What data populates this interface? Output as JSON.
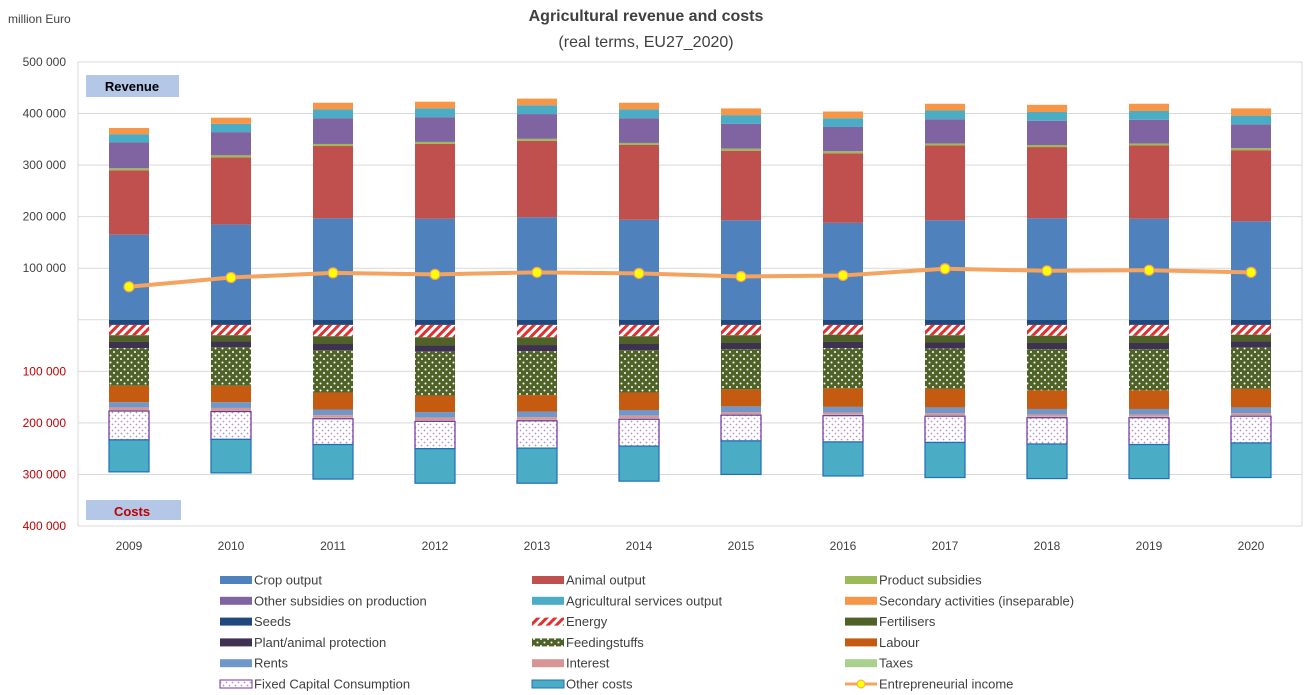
{
  "chart_data": {
    "type": "bar",
    "stacked": true,
    "title": "Agricultural revenue and costs",
    "subtitle": "(real terms, EU27_2020)",
    "unit_label": "million Euro",
    "revenue_label": "Revenue",
    "costs_label": "Costs",
    "categories": [
      "2009",
      "2010",
      "2011",
      "2012",
      "2013",
      "2014",
      "2015",
      "2016",
      "2017",
      "2018",
      "2019",
      "2020"
    ],
    "y_ticks": [
      "500 000",
      "400 000",
      "300 000",
      "200 000",
      "100 000",
      "",
      "100 000",
      "200 000",
      "300 000",
      "400 000"
    ],
    "ylim": [
      -400000,
      500000
    ],
    "grid": true,
    "legend_position": "bottom",
    "colors": {
      "accent_costs_label": "#c00000",
      "label_box": "#b4c7e7",
      "axis_line": "#d9d9d9"
    },
    "revenue_series": [
      {
        "name": "Crop output",
        "color": "#4f81bd",
        "pattern": "solid",
        "values": [
          165000,
          185000,
          197000,
          196000,
          199000,
          194000,
          193000,
          188000,
          193000,
          197000,
          196000,
          191000
        ]
      },
      {
        "name": "Animal output",
        "color": "#c0504d",
        "pattern": "solid",
        "values": [
          125000,
          130000,
          140000,
          145000,
          148000,
          145000,
          135000,
          135000,
          145000,
          138000,
          142000,
          138000
        ]
      },
      {
        "name": "Product subsidies",
        "color": "#9bbb59",
        "pattern": "solid",
        "values": [
          4000,
          4000,
          4000,
          4000,
          4000,
          4000,
          4000,
          4000,
          4000,
          4000,
          4000,
          4000
        ]
      },
      {
        "name": "Other subsidies on production",
        "color": "#8064a2",
        "pattern": "solid",
        "values": [
          50000,
          45000,
          50000,
          48000,
          48000,
          48000,
          48000,
          47000,
          47000,
          47000,
          46000,
          46000
        ]
      },
      {
        "name": "Agricultural services output",
        "color": "#4bacc6",
        "pattern": "solid",
        "values": [
          16000,
          16000,
          17000,
          17000,
          17000,
          17000,
          17000,
          17000,
          17000,
          17000,
          17000,
          17000
        ]
      },
      {
        "name": "Secondary activities (inseparable)",
        "color": "#f79646",
        "pattern": "solid",
        "values": [
          12000,
          12000,
          13000,
          13000,
          13000,
          13000,
          13000,
          13000,
          13000,
          14000,
          14000,
          14000
        ]
      }
    ],
    "cost_series": [
      {
        "name": "Seeds",
        "color": "#1f497d",
        "pattern": "solid",
        "values": [
          10000,
          10000,
          10000,
          10000,
          10000,
          10000,
          10000,
          10000,
          10000,
          10000,
          10000,
          10000
        ]
      },
      {
        "name": "Energy",
        "color": "#e03030",
        "pattern": "diag",
        "values": [
          20000,
          20000,
          22000,
          24000,
          24000,
          22000,
          20000,
          19000,
          20000,
          21000,
          21000,
          19000
        ]
      },
      {
        "name": "Fertilisers",
        "color": "#4f6228",
        "pattern": "solid",
        "values": [
          13000,
          12000,
          15000,
          16000,
          15000,
          15000,
          15000,
          14000,
          14000,
          14000,
          14000,
          13000
        ]
      },
      {
        "name": "Plant/animal protection",
        "color": "#3f3151",
        "pattern": "solid",
        "values": [
          12000,
          11000,
          12000,
          12000,
          12000,
          12000,
          12000,
          12000,
          12000,
          12000,
          12000,
          12000
        ]
      },
      {
        "name": "Feedingstuffs",
        "color": "#4f6228",
        "pattern": "dots",
        "values": [
          73000,
          75000,
          82000,
          85000,
          85000,
          82000,
          78000,
          78000,
          78000,
          80000,
          80000,
          80000
        ]
      },
      {
        "name": "Labour",
        "color": "#c55a11",
        "pattern": "solid",
        "values": [
          32000,
          32000,
          33000,
          32000,
          32000,
          34000,
          33000,
          36000,
          36000,
          36000,
          36000,
          36000
        ]
      },
      {
        "name": "Rents",
        "color": "#6f97c9",
        "pattern": "solid",
        "values": [
          10000,
          11000,
          11000,
          11000,
          11000,
          11000,
          11000,
          11000,
          11000,
          11000,
          11000,
          11000
        ]
      },
      {
        "name": "Interest",
        "color": "#d99594",
        "pattern": "solid",
        "values": [
          5000,
          5000,
          5000,
          5000,
          5000,
          5000,
          4000,
          4000,
          4000,
          4000,
          4000,
          4000
        ]
      },
      {
        "name": "Taxes",
        "color": "#a9d18e",
        "pattern": "solid",
        "values": [
          2000,
          2000,
          2000,
          2000,
          2000,
          2000,
          2000,
          2000,
          2000,
          2000,
          2000,
          2000
        ]
      },
      {
        "name": "Fixed Capital Consumption",
        "color": "#7030a0",
        "pattern": "fcc",
        "values": [
          56000,
          54000,
          50000,
          53000,
          53000,
          52000,
          50000,
          51000,
          51000,
          51000,
          52000,
          52000
        ]
      },
      {
        "name": "Other costs",
        "color": "#4bacc6",
        "pattern": "solid",
        "values": [
          62000,
          65000,
          67000,
          67000,
          68000,
          68000,
          65000,
          66000,
          68000,
          67000,
          66000,
          67000
        ]
      }
    ],
    "income_series": {
      "name": "Entrepreneurial income",
      "color": "#f4a460",
      "marker_color": "#ffff00",
      "values": [
        64000,
        82000,
        91000,
        88000,
        92000,
        90000,
        84000,
        86000,
        99000,
        95000,
        96000,
        92000
      ]
    },
    "legend": [
      [
        "Crop output",
        "Animal output",
        "Product subsidies"
      ],
      [
        "Other subsidies on production",
        "Agricultural services output",
        "Secondary activities (inseparable)"
      ],
      [
        "Seeds",
        "Energy",
        "Fertilisers"
      ],
      [
        "Plant/animal protection",
        "Feedingstuffs",
        "Labour"
      ],
      [
        "Rents",
        "Interest",
        "Taxes"
      ],
      [
        "Fixed Capital Consumption",
        "Other costs",
        "Entrepreneurial income"
      ]
    ]
  }
}
